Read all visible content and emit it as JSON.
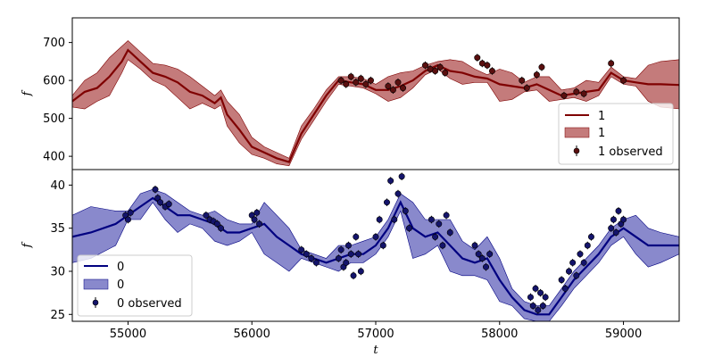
{
  "chart_data": [
    {
      "type": "line",
      "panel": "top",
      "ylabel": "f",
      "xlabel": "",
      "xlim": [
        54550,
        59450
      ],
      "ylim": [
        365,
        765
      ],
      "yticks": [
        400,
        500,
        600,
        700
      ],
      "xticks": [],
      "legend_position": "lower-right",
      "colors": {
        "line": "#7f0000",
        "band": "#b55a5a",
        "points": "#5a0f0f"
      },
      "series": [
        {
          "name": "1",
          "kind": "mean",
          "x": [
            54550,
            54650,
            54750,
            54850,
            54950,
            55000,
            55100,
            55200,
            55300,
            55400,
            55500,
            55600,
            55700,
            55750,
            55800,
            55900,
            56000,
            56100,
            56200,
            56300,
            56400,
            56500,
            56600,
            56700,
            56800,
            56900,
            57000,
            57100,
            57200,
            57300,
            57400,
            57500,
            57600,
            57700,
            57800,
            57900,
            58000,
            58100,
            58200,
            58300,
            58400,
            58500,
            58600,
            58700,
            58800,
            58900,
            59000,
            59100,
            59200,
            59300,
            59450
          ],
          "y": [
            545,
            570,
            580,
            610,
            650,
            680,
            650,
            620,
            610,
            595,
            570,
            560,
            540,
            555,
            510,
            470,
            425,
            410,
            395,
            385,
            460,
            510,
            560,
            600,
            595,
            590,
            575,
            575,
            585,
            600,
            625,
            640,
            625,
            620,
            610,
            605,
            590,
            585,
            580,
            590,
            575,
            560,
            565,
            570,
            575,
            620,
            600,
            595,
            590,
            590,
            588
          ]
        },
        {
          "name": "1",
          "kind": "band",
          "x": [
            54550,
            54650,
            54750,
            54850,
            54950,
            55000,
            55100,
            55200,
            55300,
            55400,
            55500,
            55600,
            55700,
            55750,
            55800,
            55900,
            56000,
            56100,
            56200,
            56300,
            56400,
            56500,
            56600,
            56700,
            56800,
            56900,
            57000,
            57100,
            57200,
            57300,
            57400,
            57500,
            57600,
            57700,
            57800,
            57900,
            58000,
            58100,
            58200,
            58300,
            58400,
            58500,
            58600,
            58700,
            58800,
            58900,
            59000,
            59100,
            59200,
            59300,
            59450
          ],
          "lower": [
            530,
            525,
            545,
            560,
            620,
            655,
            630,
            600,
            585,
            555,
            525,
            540,
            525,
            535,
            480,
            435,
            405,
            395,
            380,
            375,
            445,
            495,
            545,
            590,
            585,
            580,
            565,
            545,
            555,
            580,
            615,
            630,
            605,
            590,
            595,
            595,
            545,
            550,
            570,
            575,
            545,
            550,
            555,
            545,
            560,
            610,
            590,
            585,
            545,
            530,
            525
          ],
          "upper": [
            560,
            600,
            620,
            660,
            690,
            705,
            675,
            645,
            640,
            630,
            610,
            585,
            560,
            575,
            545,
            510,
            450,
            425,
            410,
            395,
            480,
            525,
            575,
            610,
            610,
            605,
            590,
            610,
            620,
            625,
            640,
            650,
            655,
            650,
            630,
            615,
            630,
            620,
            595,
            610,
            610,
            575,
            580,
            600,
            595,
            635,
            610,
            605,
            640,
            650,
            655
          ]
        },
        {
          "name": "1 observed",
          "kind": "points",
          "x": [
            56720,
            56760,
            56800,
            56840,
            56880,
            56920,
            56960,
            57100,
            57140,
            57180,
            57220,
            57400,
            57440,
            57480,
            57520,
            57560,
            57820,
            57860,
            57900,
            57940,
            58180,
            58220,
            58300,
            58340,
            58520,
            58620,
            58680,
            58900,
            59000
          ],
          "y": [
            600,
            590,
            610,
            595,
            605,
            590,
            600,
            585,
            575,
            595,
            580,
            640,
            630,
            625,
            635,
            620,
            660,
            645,
            640,
            625,
            600,
            580,
            615,
            635,
            560,
            570,
            565,
            645,
            600
          ]
        }
      ]
    },
    {
      "type": "line",
      "panel": "bottom",
      "ylabel": "f",
      "xlabel": "t",
      "xlim": [
        54550,
        59450
      ],
      "ylim": [
        24.2,
        41.8
      ],
      "yticks": [
        25,
        30,
        35,
        40
      ],
      "xticks": [
        55000,
        56000,
        57000,
        58000,
        59000
      ],
      "legend_position": "lower-left",
      "colors": {
        "line": "#000080",
        "band": "#6b6bbf",
        "points": "#14146b"
      },
      "series": [
        {
          "name": "0",
          "kind": "mean",
          "x": [
            54550,
            54700,
            54900,
            55000,
            55100,
            55200,
            55300,
            55400,
            55500,
            55600,
            55700,
            55800,
            55900,
            56000,
            56100,
            56200,
            56300,
            56400,
            56500,
            56600,
            56700,
            56800,
            56900,
            57000,
            57100,
            57200,
            57300,
            57400,
            57500,
            57600,
            57700,
            57800,
            57900,
            58000,
            58100,
            58200,
            58300,
            58400,
            58500,
            58600,
            58700,
            58800,
            58900,
            59000,
            59100,
            59200,
            59300,
            59450
          ],
          "y": [
            34,
            34.5,
            35.5,
            36.5,
            37.5,
            38.5,
            37.5,
            36.5,
            36.5,
            36,
            35.5,
            34.5,
            34.5,
            35,
            35.5,
            34,
            33,
            32,
            31.5,
            31,
            31.5,
            32,
            32,
            33,
            35,
            38,
            35,
            34,
            34.5,
            33,
            31.5,
            31,
            31.5,
            29,
            27,
            25.5,
            25,
            25,
            27,
            29,
            30.5,
            32,
            34,
            35,
            34,
            33,
            33,
            33
          ]
        },
        {
          "name": "0",
          "kind": "band",
          "x": [
            54550,
            54700,
            54900,
            55000,
            55100,
            55200,
            55300,
            55400,
            55500,
            55600,
            55700,
            55800,
            55900,
            56000,
            56100,
            56200,
            56300,
            56400,
            56500,
            56600,
            56700,
            56800,
            56900,
            57000,
            57100,
            57200,
            57300,
            57400,
            57500,
            57600,
            57700,
            57800,
            57900,
            58000,
            58100,
            58200,
            58300,
            58400,
            58500,
            58600,
            58700,
            58800,
            58900,
            59000,
            59100,
            59200,
            59300,
            59450
          ],
          "lower": [
            31,
            31.5,
            33,
            36,
            36,
            38,
            36,
            34.5,
            35.5,
            35,
            33.5,
            33,
            33.5,
            34.5,
            32,
            31,
            30,
            31.5,
            31,
            30.5,
            30,
            31,
            31,
            32,
            34,
            37,
            31.5,
            32,
            33,
            30,
            29.5,
            29.5,
            29,
            26.5,
            26,
            24.5,
            24.2,
            24.2,
            26,
            28,
            29.5,
            31,
            33,
            34,
            32,
            30.5,
            31,
            32
          ],
          "upper": [
            36.5,
            37.5,
            37,
            37,
            39,
            39.5,
            39,
            38,
            37,
            36.5,
            37,
            36,
            35.5,
            35.5,
            38,
            36.5,
            35,
            32.5,
            32,
            31.5,
            33,
            33,
            33.5,
            34,
            36,
            39,
            38,
            36,
            36,
            36,
            33.5,
            32.5,
            34,
            31.5,
            28,
            26.5,
            26,
            26,
            28,
            30,
            31.5,
            33,
            35,
            36,
            36.5,
            35,
            34.5,
            34
          ]
        },
        {
          "name": "0 observed",
          "kind": "points",
          "x": [
            54980,
            55000,
            55020,
            55220,
            55240,
            55260,
            55300,
            55330,
            55630,
            55660,
            55690,
            55720,
            55750,
            56000,
            56020,
            56040,
            56060,
            56400,
            56440,
            56480,
            56520,
            56700,
            56720,
            56740,
            56760,
            56780,
            56800,
            56820,
            56840,
            56860,
            56880,
            57000,
            57030,
            57060,
            57090,
            57120,
            57150,
            57180,
            57210,
            57240,
            57270,
            57450,
            57480,
            57510,
            57540,
            57570,
            57600,
            57800,
            57830,
            57860,
            57890,
            57920,
            58250,
            58270,
            58290,
            58310,
            58330,
            58350,
            58370,
            58500,
            58530,
            58560,
            58590,
            58620,
            58650,
            58680,
            58710,
            58740,
            58900,
            58920,
            58940,
            58960,
            58980,
            59000
          ],
          "y": [
            36.5,
            36,
            36.8,
            39.5,
            38.5,
            38,
            37.5,
            37.8,
            36.5,
            36,
            35.8,
            35.5,
            35,
            36.5,
            36,
            36.8,
            35.5,
            32.5,
            32,
            31.5,
            31,
            31.5,
            32.5,
            30.5,
            31,
            33,
            32,
            29.5,
            34,
            32,
            30,
            34,
            36,
            33,
            38,
            40.5,
            36,
            39,
            41,
            37,
            35,
            36,
            34,
            35.5,
            33,
            36.5,
            34.5,
            33,
            32,
            31.5,
            30.5,
            32,
            27,
            26,
            28,
            25.5,
            27.5,
            26,
            27,
            29,
            28,
            30,
            31,
            29.5,
            32,
            31,
            33,
            34,
            35,
            36,
            34.5,
            37,
            35.5,
            36
          ]
        }
      ]
    }
  ],
  "legend_top": {
    "line": "1",
    "band": "1",
    "points": "1 observed"
  },
  "legend_bottom": {
    "line": "0",
    "band": "0",
    "points": "0 observed"
  }
}
